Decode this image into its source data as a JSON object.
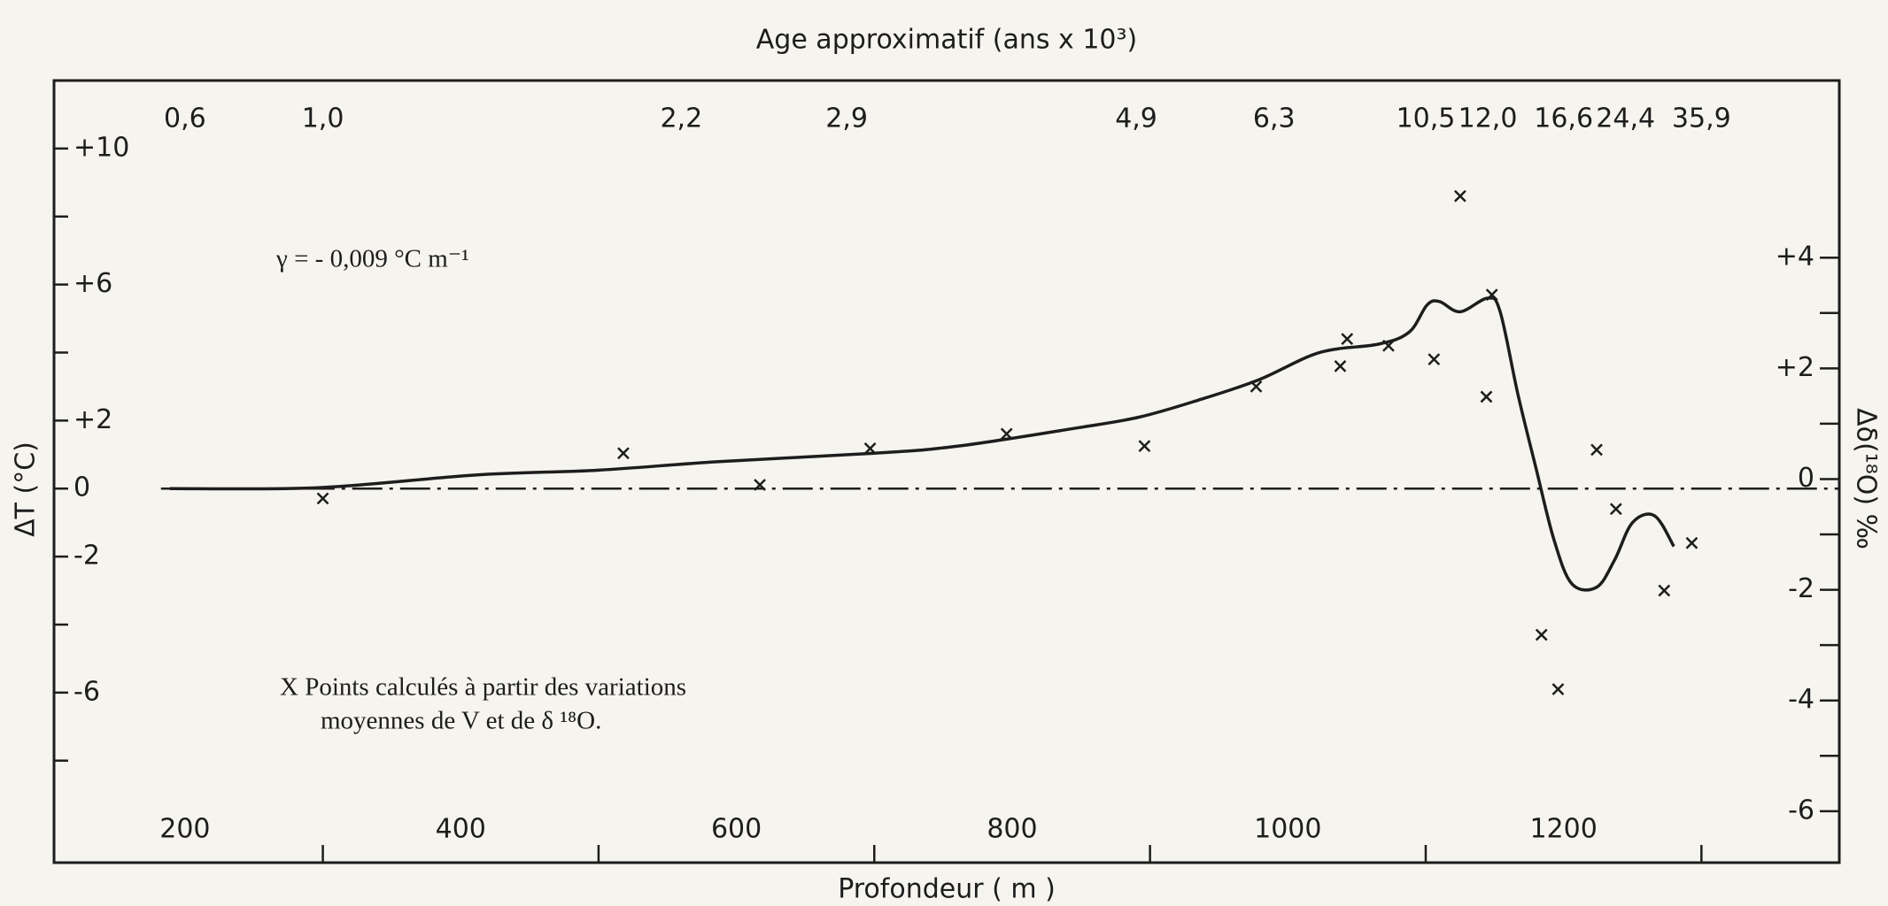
{
  "chart_data": {
    "type": "line",
    "top_title": "Age approximatif  (ans x 10³)",
    "xlabel": "Profondeur  ( m )",
    "ylabel": "ΔT  (°C)",
    "y2label": "Δδ(¹⁸O) ‰",
    "annotations": [
      "γ  =  - 0,009 °C m⁻¹",
      "X  Points calculés à partir des variations",
      "moyennes de  V et de  δ ¹⁸O."
    ],
    "xlim": [
      105,
      1400
    ],
    "xticks": [
      200,
      400,
      600,
      800,
      1000,
      1200
    ],
    "xminorticks": [
      300,
      500,
      700,
      900,
      1100,
      1300
    ],
    "top_ticks": [
      {
        "value": 200,
        "label": "0,6"
      },
      {
        "value": 300,
        "label": "1,0"
      },
      {
        "value": 560,
        "label": "2,2"
      },
      {
        "value": 680,
        "label": "2,9"
      },
      {
        "value": 890,
        "label": "4,9"
      },
      {
        "value": 990,
        "label": "6,3"
      },
      {
        "value": 1100,
        "label": "10,5"
      },
      {
        "value": 1145,
        "label": "12,0"
      },
      {
        "value": 1200,
        "label": "16,6"
      },
      {
        "value": 1245,
        "label": "24,4"
      },
      {
        "value": 1300,
        "label": "35,9"
      }
    ],
    "ylim": [
      -11,
      12
    ],
    "yticks": [
      {
        "value": 10,
        "label": "+10"
      },
      {
        "value": 6,
        "label": "+6"
      },
      {
        "value": 2,
        "label": "+2"
      },
      0,
      -2,
      -6
    ],
    "yminorticks": [
      8,
      4,
      -4,
      -8
    ],
    "y2lim": [
      -6.93,
      7.2
    ],
    "y2ticks": [
      {
        "value": 4,
        "label": "+4"
      },
      {
        "value": 2,
        "label": "+2"
      },
      0,
      -2,
      -4,
      -6
    ],
    "y2minorticks": [
      3,
      1,
      -1,
      -3,
      -5
    ],
    "color": "#1d1d1d",
    "curve": {
      "x": [
        189,
        298,
        411,
        499,
        586,
        700,
        761,
        848,
        892,
        935,
        979,
        1023,
        1066,
        1088,
        1101,
        1110,
        1125,
        1145,
        1154,
        1167,
        1180,
        1193,
        1206,
        1224,
        1237,
        1250,
        1266,
        1280
      ],
      "values": [
        0,
        0.03,
        0.4,
        0.54,
        0.79,
        1.04,
        1.25,
        1.79,
        2.1,
        2.6,
        3.2,
        4.0,
        4.25,
        4.6,
        5.4,
        5.5,
        5.2,
        5.6,
        5.2,
        2.75,
        0.6,
        -1.5,
        -2.8,
        -2.9,
        -2.1,
        -1.0,
        -0.8,
        -1.7
      ]
    },
    "points": {
      "x": [
        300,
        518,
        617,
        697,
        796,
        896,
        977,
        1038,
        1043,
        1073,
        1106,
        1125,
        1144,
        1148,
        1184,
        1196,
        1224,
        1238,
        1273,
        1293
      ],
      "values": [
        -0.29,
        1.04,
        0.11,
        1.18,
        1.61,
        1.25,
        3.0,
        3.6,
        4.4,
        4.2,
        3.8,
        8.6,
        2.7,
        5.7,
        -4.3,
        -5.9,
        1.14,
        -0.6,
        -3.0,
        -1.6
      ]
    }
  }
}
